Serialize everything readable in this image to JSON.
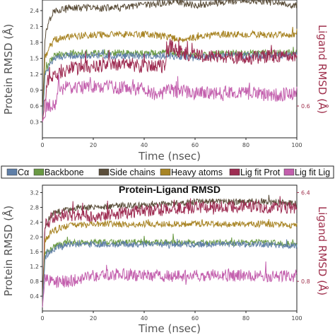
{
  "colors": {
    "ca": "#5f7fa8",
    "backbone": "#6a9a44",
    "side_chains": "#5b4e3a",
    "heavy_atoms": "#a88424",
    "lig_fit_prot": "#9e2c52",
    "lig_fit_lig": "#c35fad",
    "right_axis": "#a0324e"
  },
  "legend": {
    "items": [
      {
        "label": "Cα",
        "color_key": "ca"
      },
      {
        "label": "Backbone",
        "color_key": "backbone"
      },
      {
        "label": "Side chains",
        "color_key": "side_chains"
      },
      {
        "label": "Heavy atoms",
        "color_key": "heavy_atoms"
      },
      {
        "label": "Lig fit Prot",
        "color_key": "lig_fit_prot"
      },
      {
        "label": "Lig fit Lig",
        "color_key": "lig_fit_lig"
      }
    ]
  },
  "chart_data": [
    {
      "type": "line",
      "title": "",
      "xlabel": "Time (nsec)",
      "ylabel": "Protein RMSD (Å)",
      "ylabel_right": "Ligand RMSD (Å)",
      "xlim": [
        0,
        100
      ],
      "ylim": [
        0.0,
        2.6
      ],
      "x_ticks": [
        0,
        20,
        40,
        60,
        80,
        100
      ],
      "y_ticks": [
        0.3,
        0.6,
        0.9,
        1.2,
        1.5,
        1.8,
        2.1,
        2.4
      ],
      "y_tick_labels": [
        "0.3",
        "0.6",
        "0.9",
        "1.2",
        "1.5",
        "1.8",
        "2.1",
        "2.4"
      ],
      "right_ticks_visible": [
        0.6
      ],
      "right_tick_labels": [
        "0.6"
      ],
      "series": [
        {
          "name": "Side chains",
          "color_key": "side_chains",
          "x": [
            0,
            1,
            3,
            5,
            10,
            20,
            30,
            40,
            50,
            52,
            55,
            60,
            70,
            80,
            90,
            100
          ],
          "y": [
            0.3,
            1.9,
            2.3,
            2.4,
            2.45,
            2.45,
            2.45,
            2.5,
            2.55,
            2.6,
            2.55,
            2.5,
            2.55,
            2.6,
            2.55,
            2.5
          ]
        },
        {
          "name": "Heavy atoms",
          "color_key": "heavy_atoms",
          "x": [
            0,
            1,
            3,
            5,
            10,
            20,
            30,
            40,
            50,
            55,
            60,
            70,
            80,
            90,
            100
          ],
          "y": [
            0.3,
            1.5,
            1.75,
            1.85,
            1.9,
            1.95,
            1.95,
            1.95,
            1.9,
            1.85,
            1.9,
            1.95,
            1.95,
            1.95,
            1.95
          ]
        },
        {
          "name": "Backbone",
          "color_key": "backbone",
          "x": [
            0,
            1,
            3,
            5,
            10,
            20,
            30,
            40,
            50,
            60,
            70,
            80,
            90,
            100
          ],
          "y": [
            0.3,
            1.2,
            1.45,
            1.55,
            1.6,
            1.6,
            1.6,
            1.6,
            1.6,
            1.55,
            1.6,
            1.6,
            1.6,
            1.6
          ]
        },
        {
          "name": "Cα",
          "color_key": "ca",
          "x": [
            0,
            1,
            3,
            5,
            10,
            20,
            30,
            40,
            50,
            60,
            70,
            80,
            90,
            100
          ],
          "y": [
            0.3,
            1.15,
            1.4,
            1.5,
            1.55,
            1.55,
            1.55,
            1.55,
            1.55,
            1.5,
            1.55,
            1.55,
            1.55,
            1.55
          ]
        },
        {
          "name": "Lig fit Prot",
          "color_key": "lig_fit_prot",
          "x": [
            0,
            2,
            5,
            10,
            20,
            30,
            40,
            48,
            50,
            55,
            60,
            70,
            80,
            90,
            100
          ],
          "y": [
            0.3,
            1.05,
            1.2,
            1.3,
            1.35,
            1.4,
            1.35,
            1.35,
            1.75,
            1.6,
            1.55,
            1.55,
            1.5,
            1.55,
            1.5
          ]
        },
        {
          "name": "Lig fit Lig",
          "color_key": "lig_fit_lig",
          "x": [
            0,
            2,
            5,
            6,
            10,
            20,
            30,
            40,
            45,
            50,
            60,
            70,
            80,
            90,
            100
          ],
          "y": [
            0.3,
            0.6,
            0.62,
            0.92,
            0.95,
            0.95,
            0.95,
            0.92,
            0.8,
            0.9,
            0.85,
            0.85,
            0.85,
            0.8,
            0.85
          ]
        }
      ]
    },
    {
      "type": "line",
      "title": "Protein-Ligand RMSD",
      "xlabel": "Time (nsec)",
      "ylabel": "Protein RMSD (Å)",
      "ylabel_right": "Ligand RMSD (Å)",
      "xlim": [
        0,
        100
      ],
      "ylim": [
        0.0,
        3.4
      ],
      "x_ticks": [
        0,
        20,
        40,
        60,
        80,
        100
      ],
      "y_ticks": [
        0.4,
        0.8,
        1.2,
        1.6,
        2.0,
        2.4,
        2.8,
        3.2
      ],
      "y_tick_labels": [
        "0.4",
        "0.8",
        "1.2",
        "1.6",
        "2.0",
        "2.4",
        "2.8",
        "3.2"
      ],
      "right_ticks_visible": [
        0.8,
        3.2
      ],
      "right_tick_labels": [
        "0.8",
        "6.4"
      ],
      "series": [
        {
          "name": "Side chains",
          "color_key": "side_chains",
          "x": [
            0,
            1,
            3,
            5,
            10,
            20,
            30,
            40,
            50,
            60,
            70,
            80,
            90,
            100
          ],
          "y": [
            0.1,
            2.2,
            2.55,
            2.65,
            2.75,
            2.8,
            2.85,
            2.85,
            2.9,
            2.95,
            2.95,
            2.95,
            2.95,
            2.9
          ]
        },
        {
          "name": "Lig fit Prot",
          "color_key": "lig_fit_prot",
          "x": [
            0,
            1,
            3,
            5,
            10,
            20,
            30,
            40,
            50,
            60,
            70,
            80,
            90,
            100
          ],
          "y": [
            0.1,
            2.3,
            2.45,
            2.55,
            2.6,
            2.55,
            2.65,
            2.7,
            2.75,
            2.8,
            2.8,
            2.85,
            2.8,
            2.8
          ]
        },
        {
          "name": "Heavy atoms",
          "color_key": "heavy_atoms",
          "x": [
            0,
            1,
            3,
            5,
            10,
            20,
            30,
            40,
            50,
            60,
            70,
            80,
            90,
            100
          ],
          "y": [
            0.1,
            1.9,
            2.1,
            2.2,
            2.3,
            2.35,
            2.35,
            2.35,
            2.35,
            2.35,
            2.35,
            2.35,
            2.35,
            2.3
          ]
        },
        {
          "name": "Backbone",
          "color_key": "backbone",
          "x": [
            0,
            1,
            3,
            5,
            10,
            20,
            30,
            40,
            50,
            60,
            70,
            80,
            90,
            100
          ],
          "y": [
            0.1,
            1.5,
            1.65,
            1.75,
            1.85,
            1.85,
            1.85,
            1.85,
            1.85,
            1.85,
            1.85,
            1.85,
            1.85,
            1.8
          ]
        },
        {
          "name": "Cα",
          "color_key": "ca",
          "x": [
            0,
            1,
            3,
            5,
            10,
            20,
            30,
            40,
            50,
            60,
            70,
            80,
            90,
            100
          ],
          "y": [
            0.1,
            1.45,
            1.6,
            1.7,
            1.8,
            1.8,
            1.8,
            1.8,
            1.8,
            1.8,
            1.8,
            1.8,
            1.8,
            1.75
          ]
        },
        {
          "name": "Lig fit Lig",
          "color_key": "lig_fit_lig",
          "x": [
            0,
            1,
            3,
            5,
            10,
            20,
            30,
            40,
            50,
            60,
            70,
            80,
            90,
            100
          ],
          "y": [
            0.1,
            0.85,
            0.8,
            0.78,
            0.8,
            0.95,
            1.0,
            0.95,
            0.95,
            0.95,
            0.98,
            0.95,
            0.95,
            0.95
          ]
        }
      ]
    }
  ]
}
